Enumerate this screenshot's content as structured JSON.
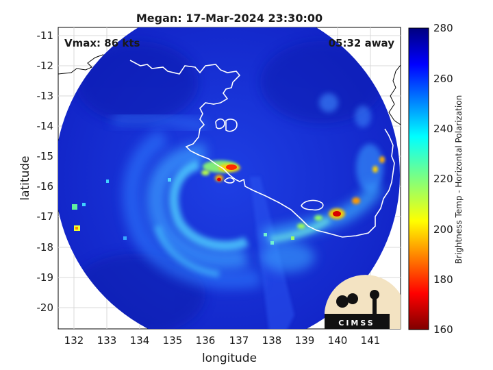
{
  "title": "Megan: 17-Mar-2024 23:30:00",
  "annotations": {
    "vmax": "Vmax: 86 kts",
    "time_away": "05:32 away"
  },
  "axes": {
    "xlabel": "longitude",
    "ylabel": "latitude",
    "xlim": [
      131.5,
      141.8
    ],
    "ylim": [
      -20.7,
      -10.7
    ],
    "xticks": [
      "132",
      "133",
      "134",
      "135",
      "136",
      "137",
      "138",
      "139",
      "140",
      "141"
    ],
    "yticks": [
      "-11",
      "-12",
      "-13",
      "-14",
      "-15",
      "-16",
      "-17",
      "-18",
      "-19",
      "-20"
    ],
    "grid": true
  },
  "colorbar": {
    "label": "Brightness Temp - Horizontal Polarization",
    "range": [
      160,
      280
    ],
    "ticks": [
      "280",
      "260",
      "240",
      "220",
      "200",
      "180",
      "160"
    ],
    "colormap": "jet"
  },
  "logo": {
    "text": "CIMSS"
  },
  "colors": {
    "ocean": "#1a2fd8",
    "deep": "#0a1fa8",
    "coast": "#ffffff",
    "outside_coast": "#000000"
  },
  "chart_data": {
    "type": "heatmap",
    "variable": "Brightness Temp - Horizontal Polarization",
    "storm_name": "Megan",
    "valid_time": "17-Mar-2024 23:30:00",
    "vmax_kts": 86,
    "features": [
      {
        "lon": 136.6,
        "lat": -15.4,
        "temp": 180
      },
      {
        "lon": 136.3,
        "lat": -15.8,
        "temp": 195
      },
      {
        "lon": 140.0,
        "lat": -16.9,
        "temp": 185
      },
      {
        "lon": 140.4,
        "lat": -16.5,
        "temp": 205
      },
      {
        "lon": 141.2,
        "lat": -15.2,
        "temp": 215
      },
      {
        "lon": 141.0,
        "lat": -15.5,
        "temp": 225
      },
      {
        "lon": 132.1,
        "lat": -17.4,
        "temp": 215
      },
      {
        "lon": 132.1,
        "lat": -16.8,
        "temp": 225
      },
      {
        "lon": 135.0,
        "lat": -16.5,
        "temp": 235
      },
      {
        "lon": 134.8,
        "lat": -17.5,
        "temp": 245
      },
      {
        "lon": 139.3,
        "lat": -17.3,
        "temp": 235
      },
      {
        "lon": 140.5,
        "lat": -13.5,
        "temp": 245
      }
    ]
  }
}
